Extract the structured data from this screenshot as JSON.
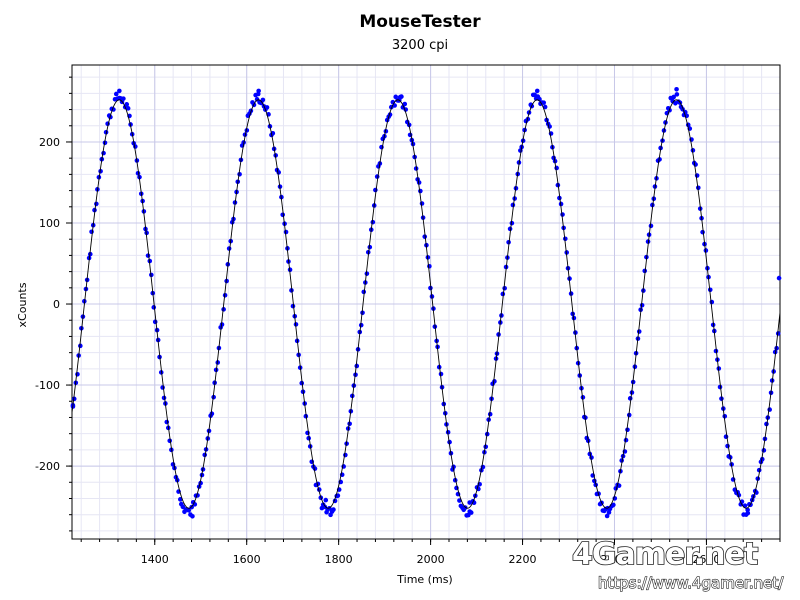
{
  "chart_data": {
    "type": "scatter",
    "title": "MouseTester",
    "subtitle": "3200 cpi",
    "xlabel": "Time (ms)",
    "ylabel": "xCounts",
    "xlim": [
      1220,
      2760
    ],
    "ylim": [
      -290,
      295
    ],
    "x_ticks": [
      1400,
      1600,
      1800,
      2000,
      2200,
      2400,
      2600
    ],
    "y_ticks": [
      -200,
      -100,
      0,
      100,
      200
    ],
    "grid": true,
    "legend": "none",
    "series": [
      {
        "style": "markers",
        "color": "#0000ff",
        "sine_fit": {
          "amplitude": 255,
          "period_ms": 303,
          "phase_zero_crossing_ms": 1247,
          "offset": 0
        },
        "peaks": [
          {
            "x": 1323,
            "y": 263
          },
          {
            "x": 1626,
            "y": 263
          },
          {
            "x": 1932,
            "y": 252
          },
          {
            "x": 2232,
            "y": 263
          },
          {
            "x": 2535,
            "y": 265
          }
        ],
        "troughs": [
          {
            "x": 1482,
            "y": -262
          },
          {
            "x": 1772,
            "y": -242
          },
          {
            "x": 2085,
            "y": -245
          },
          {
            "x": 2385,
            "y": -252
          },
          {
            "x": 2690,
            "y": -258
          }
        ],
        "start": {
          "x": 1222,
          "y": -125
        },
        "end": {
          "x": 2758,
          "y": 32
        }
      },
      {
        "style": "line",
        "color": "#000000",
        "sine_fit": {
          "amplitude": 252,
          "period_ms": 303,
          "phase_zero_crossing_ms": 1247,
          "offset": 0
        }
      }
    ]
  },
  "watermark": {
    "logo": "4Gamer.net",
    "url": "https://www.4gamer.net/"
  }
}
